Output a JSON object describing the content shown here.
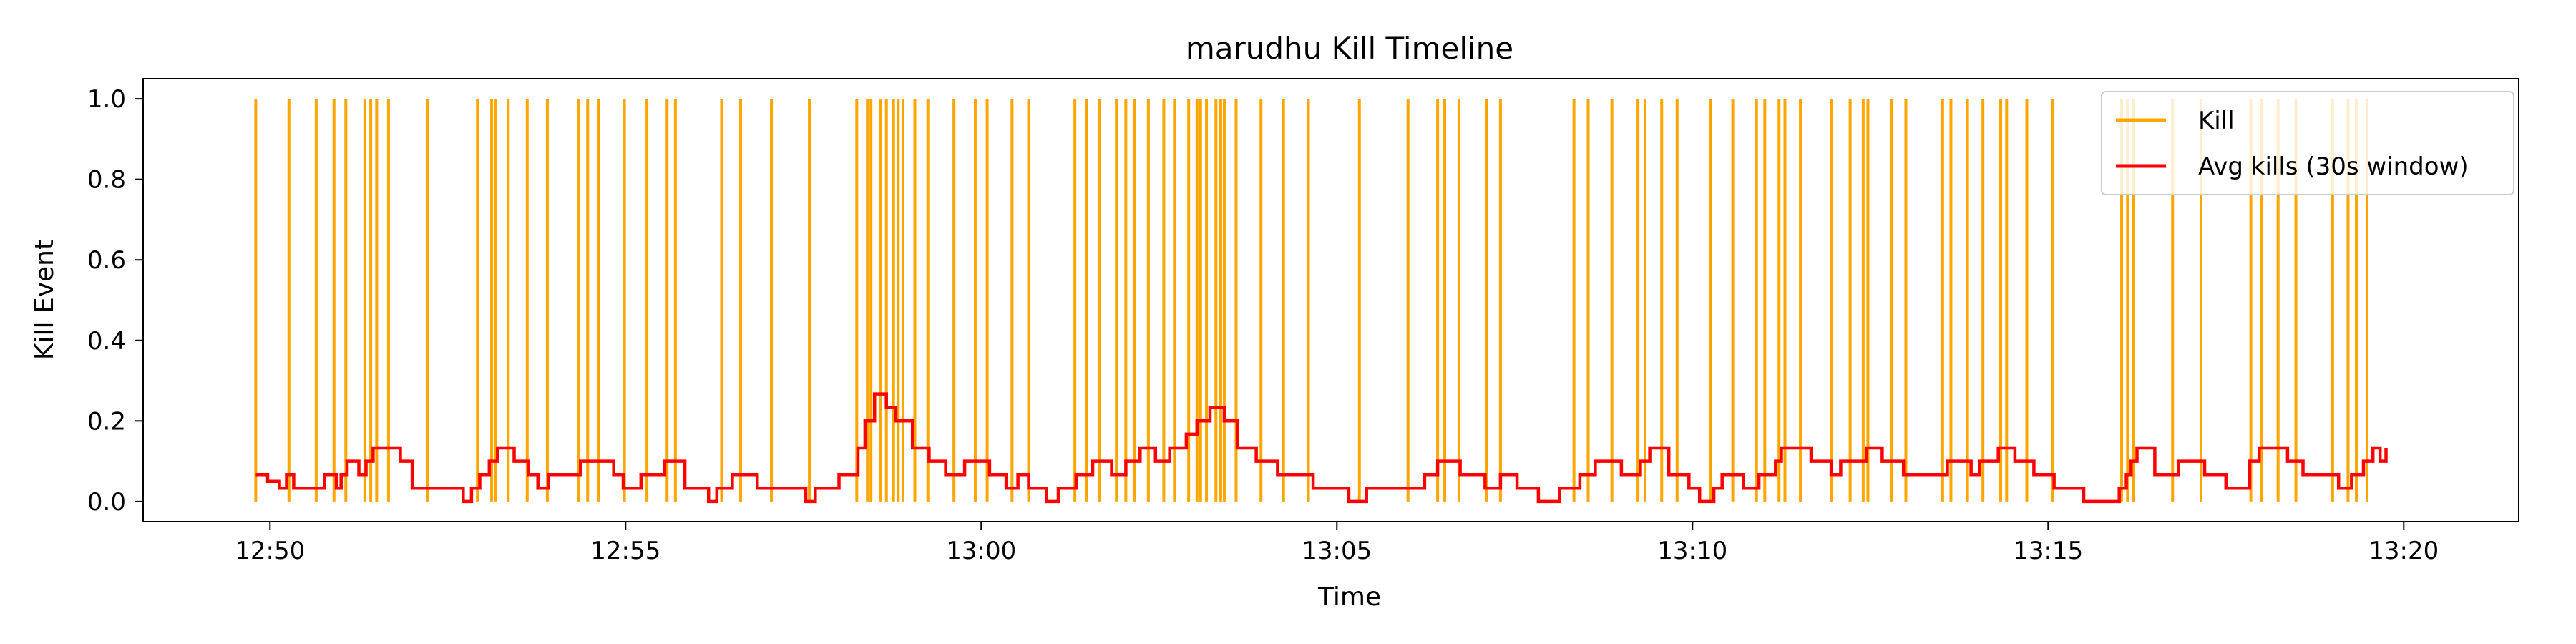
{
  "chart_data": {
    "type": "line",
    "title": "marudhu Kill Timeline",
    "xlabel": "Time",
    "ylabel": "Kill Event",
    "x_range_minutes": [
      "12:48:13",
      "13:21:37"
    ],
    "ylim": [
      -0.05,
      1.05
    ],
    "x_ticks": [
      "12:50",
      "12:55",
      "13:00",
      "13:05",
      "13:10",
      "13:15",
      "13:20"
    ],
    "y_ticks": [
      "0.0",
      "0.2",
      "0.4",
      "0.6",
      "0.8",
      "1.0"
    ],
    "grid": false,
    "legend_position": "top-right",
    "colors": {
      "kill": "#ffa500",
      "avg": "#ff0000"
    },
    "series": [
      {
        "name": "Kill",
        "kind": "event-lines",
        "value": 1.0,
        "times": [
          "12:49:48",
          "12:50:16",
          "12:50:39",
          "12:50:54",
          "12:51:04",
          "12:51:20",
          "12:51:25",
          "12:51:30",
          "12:51:40",
          "12:52:13",
          "12:52:55",
          "12:53:07",
          "12:53:10",
          "12:53:21",
          "12:53:37",
          "12:53:54",
          "12:54:20",
          "12:54:28",
          "12:54:37",
          "12:54:59",
          "12:55:18",
          "12:55:35",
          "12:55:42",
          "12:56:21",
          "12:56:37",
          "12:57:03",
          "12:57:35",
          "12:58:15",
          "12:58:24",
          "12:58:27",
          "12:58:35",
          "12:58:40",
          "12:58:46",
          "12:58:50",
          "12:58:54",
          "12:59:04",
          "12:59:15",
          "12:59:37",
          "12:59:55",
          "13:00:05",
          "13:00:26",
          "13:00:40",
          "13:01:19",
          "13:01:29",
          "13:01:40",
          "13:01:54",
          "13:02:02",
          "13:02:09",
          "13:02:21",
          "13:02:34",
          "13:02:43",
          "13:02:55",
          "13:03:02",
          "13:03:05",
          "13:03:10",
          "13:03:18",
          "13:03:22",
          "13:03:25",
          "13:03:35",
          "13:03:56",
          "13:04:15",
          "13:04:36",
          "13:05:19",
          "13:06:00",
          "13:06:25",
          "13:06:31",
          "13:06:43",
          "13:07:06",
          "13:07:18",
          "13:08:20",
          "13:08:32",
          "13:08:52",
          "13:09:14",
          "13:09:20",
          "13:09:34",
          "13:09:47",
          "13:10:15",
          "13:10:34",
          "13:10:54",
          "13:11:01",
          "13:11:13",
          "13:11:18",
          "13:11:31",
          "13:11:57",
          "13:12:13",
          "13:12:24",
          "13:12:28",
          "13:12:48",
          "13:13:00",
          "13:13:31",
          "13:13:38",
          "13:13:52",
          "13:14:05",
          "13:14:20",
          "13:14:25",
          "13:14:42",
          "13:15:04",
          "13:16:02",
          "13:16:07",
          "13:16:12",
          "13:16:45",
          "13:17:09",
          "13:17:51",
          "13:18:00",
          "13:18:14",
          "13:18:29",
          "13:19:00",
          "13:19:13",
          "13:19:20",
          "13:19:29"
        ]
      },
      {
        "name": "Avg kills (30s window)",
        "kind": "step-line",
        "points": [
          [
            "12:49:48",
            0.067
          ],
          [
            "12:49:58",
            0.05
          ],
          [
            "12:50:08",
            0.033
          ],
          [
            "12:50:14",
            0.067
          ],
          [
            "12:50:20",
            0.033
          ],
          [
            "12:50:40",
            0.033
          ],
          [
            "12:50:46",
            0.067
          ],
          [
            "12:50:56",
            0.033
          ],
          [
            "12:51:00",
            0.067
          ],
          [
            "12:51:05",
            0.1
          ],
          [
            "12:51:15",
            0.067
          ],
          [
            "12:51:21",
            0.1
          ],
          [
            "12:51:27",
            0.133
          ],
          [
            "12:51:50",
            0.1
          ],
          [
            "12:52:00",
            0.033
          ],
          [
            "12:52:43",
            0.0
          ],
          [
            "12:52:50",
            0.033
          ],
          [
            "12:52:57",
            0.067
          ],
          [
            "12:53:05",
            0.1
          ],
          [
            "12:53:12",
            0.133
          ],
          [
            "12:53:26",
            0.1
          ],
          [
            "12:53:38",
            0.067
          ],
          [
            "12:53:46",
            0.033
          ],
          [
            "12:53:55",
            0.067
          ],
          [
            "12:54:22",
            0.1
          ],
          [
            "12:54:50",
            0.067
          ],
          [
            "12:54:58",
            0.033
          ],
          [
            "12:55:13",
            0.067
          ],
          [
            "12:55:33",
            0.1
          ],
          [
            "12:55:50",
            0.033
          ],
          [
            "12:56:10",
            0.0
          ],
          [
            "12:56:17",
            0.033
          ],
          [
            "12:56:30",
            0.067
          ],
          [
            "12:56:51",
            0.033
          ],
          [
            "12:57:32",
            0.0
          ],
          [
            "12:57:40",
            0.033
          ],
          [
            "12:58:00",
            0.067
          ],
          [
            "12:58:16",
            0.133
          ],
          [
            "12:58:22",
            0.2
          ],
          [
            "12:58:30",
            0.267
          ],
          [
            "12:58:40",
            0.233
          ],
          [
            "12:58:48",
            0.2
          ],
          [
            "12:59:02",
            0.133
          ],
          [
            "12:59:16",
            0.1
          ],
          [
            "12:59:30",
            0.067
          ],
          [
            "12:59:46",
            0.1
          ],
          [
            "13:00:07",
            0.067
          ],
          [
            "13:00:21",
            0.033
          ],
          [
            "13:00:31",
            0.067
          ],
          [
            "13:00:40",
            0.033
          ],
          [
            "13:00:55",
            0.0
          ],
          [
            "13:01:05",
            0.033
          ],
          [
            "13:01:20",
            0.067
          ],
          [
            "13:01:34",
            0.1
          ],
          [
            "13:01:50",
            0.067
          ],
          [
            "13:02:02",
            0.1
          ],
          [
            "13:02:14",
            0.133
          ],
          [
            "13:02:27",
            0.1
          ],
          [
            "13:02:39",
            0.133
          ],
          [
            "13:02:53",
            0.167
          ],
          [
            "13:03:02",
            0.2
          ],
          [
            "13:03:13",
            0.233
          ],
          [
            "13:03:25",
            0.2
          ],
          [
            "13:03:36",
            0.133
          ],
          [
            "13:03:52",
            0.1
          ],
          [
            "13:04:10",
            0.067
          ],
          [
            "13:04:40",
            0.033
          ],
          [
            "13:05:10",
            0.0
          ],
          [
            "13:05:25",
            0.033
          ],
          [
            "13:06:00",
            0.033
          ],
          [
            "13:06:14",
            0.067
          ],
          [
            "13:06:25",
            0.1
          ],
          [
            "13:06:44",
            0.067
          ],
          [
            "13:07:05",
            0.033
          ],
          [
            "13:07:18",
            0.067
          ],
          [
            "13:07:32",
            0.033
          ],
          [
            "13:07:50",
            0.0
          ],
          [
            "13:08:08",
            0.033
          ],
          [
            "13:08:25",
            0.067
          ],
          [
            "13:08:38",
            0.1
          ],
          [
            "13:09:00",
            0.067
          ],
          [
            "13:09:16",
            0.1
          ],
          [
            "13:09:24",
            0.133
          ],
          [
            "13:09:40",
            0.067
          ],
          [
            "13:09:57",
            0.033
          ],
          [
            "13:10:06",
            0.0
          ],
          [
            "13:10:18",
            0.033
          ],
          [
            "13:10:25",
            0.067
          ],
          [
            "13:10:43",
            0.033
          ],
          [
            "13:10:56",
            0.067
          ],
          [
            "13:11:10",
            0.1
          ],
          [
            "13:11:15",
            0.133
          ],
          [
            "13:11:40",
            0.1
          ],
          [
            "13:11:57",
            0.067
          ],
          [
            "13:12:05",
            0.1
          ],
          [
            "13:12:27",
            0.133
          ],
          [
            "13:12:40",
            0.1
          ],
          [
            "13:12:58",
            0.067
          ],
          [
            "13:13:35",
            0.1
          ],
          [
            "13:13:55",
            0.067
          ],
          [
            "13:14:02",
            0.1
          ],
          [
            "13:14:18",
            0.133
          ],
          [
            "13:14:32",
            0.1
          ],
          [
            "13:14:48",
            0.067
          ],
          [
            "13:15:05",
            0.033
          ],
          [
            "13:15:30",
            0.0
          ],
          [
            "13:16:00",
            0.033
          ],
          [
            "13:16:06",
            0.067
          ],
          [
            "13:16:10",
            0.1
          ],
          [
            "13:16:15",
            0.133
          ],
          [
            "13:16:30",
            0.067
          ],
          [
            "13:16:50",
            0.1
          ],
          [
            "13:17:12",
            0.067
          ],
          [
            "13:17:30",
            0.033
          ],
          [
            "13:17:50",
            0.1
          ],
          [
            "13:17:58",
            0.133
          ],
          [
            "13:18:22",
            0.1
          ],
          [
            "13:18:35",
            0.067
          ],
          [
            "13:19:05",
            0.033
          ],
          [
            "13:19:16",
            0.067
          ],
          [
            "13:19:26",
            0.1
          ],
          [
            "13:19:34",
            0.133
          ],
          [
            "13:19:40",
            0.1
          ],
          [
            "13:19:45",
            0.133
          ]
        ]
      }
    ]
  }
}
